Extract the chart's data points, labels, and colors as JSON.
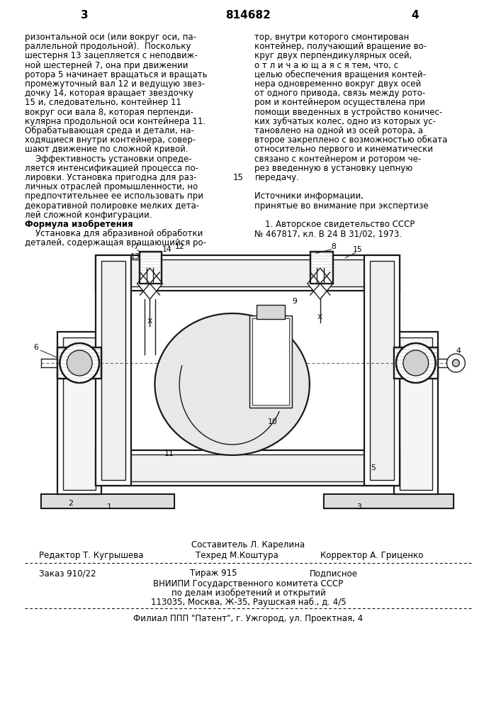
{
  "page_number_left": "3",
  "page_number_center": "814682",
  "page_number_right": "4",
  "col_left_text": [
    "ризонтальной оси (или вокруг оси, па-",
    "раллельной продольной).  Поскольку",
    "шестерня 13 зацепляется с неподвиж-",
    "ной шестерней 7, она при движении",
    "ротора 5 начинает вращаться и вращать",
    "промежуточный вал 12 и ведущую звез-",
    "дочку 14, которая вращает звездочку",
    "15 и, следовательно, контейнер 11",
    "вокруг оси вала 8, которая перпенди-",
    "кулярна продольной оси контейнера 11.",
    "Обрабатывающая среда и детали, на-",
    "ходящиеся внутри контейнера, совер-",
    "шают движение по сложной кривой.",
    "    Эффективность установки опреде-",
    "ляется интенсификацией процесса по-",
    "лировки. Установка пригодна для раз-",
    "личных отраслей промышленности, но",
    "предпочтительнее ее использовать при",
    "декоративной полировке мелких дета-",
    "лей сложной конфигурации.",
    "Формула изобретения",
    "    Установка для абразивной обработки",
    "деталей, содержащая вращающийся ро-"
  ],
  "col_right_text": [
    "тор, внутри которого смонтирован",
    "контейнер, получающий вращение во-",
    "круг двух перпендикулярных осей,",
    "о т л и ч а ю щ а я с я тем, что, с",
    "целью обеспечения вращения контей-",
    "нера одновременно вокруг двух осей",
    "от одного привода, связь между рото-",
    "ром и контейнером осуществлена при",
    "помощи введенных в устройство коничес-",
    "ких зубчатых колес, одно из которых ус-",
    "тановлено на одной из осей ротора, а",
    "второе закреплено с возможностью обката",
    "относительно первого и кинематически",
    "связано с контейнером и ротором че-",
    "рез введенную в установку цепную",
    "передачу.",
    "",
    "Источники информации,",
    "принятые во внимание при экспертизе",
    "",
    "    1. Авторское свидетельство СССР",
    "№ 467817, кл. В 24 В 31/02, 1973."
  ],
  "footer_line1": "Составитель Л. Карелина",
  "footer_editor": "Редактор Т. Кугрышева",
  "footer_tech": "Техред М.Коштура",
  "footer_corrector": "Корректор А. Гриценко",
  "footer_order": "Заказ 910/22",
  "footer_print": "Тираж 915",
  "footer_subscription": "Подписное",
  "footer_org1": "ВНИИПИ Государственного комитета СССР",
  "footer_org2": "по делам изобретений и открытий",
  "footer_org3": "113035, Москва, Ж-35, Раушская наб., д. 4/5",
  "footer_branch": "Филиал ППП \"Патент\", г. Ужгород, ул. Проектная, 4",
  "bg_color": "#ffffff",
  "text_color": "#000000",
  "font_size_body": 8.5,
  "font_size_header": 11
}
